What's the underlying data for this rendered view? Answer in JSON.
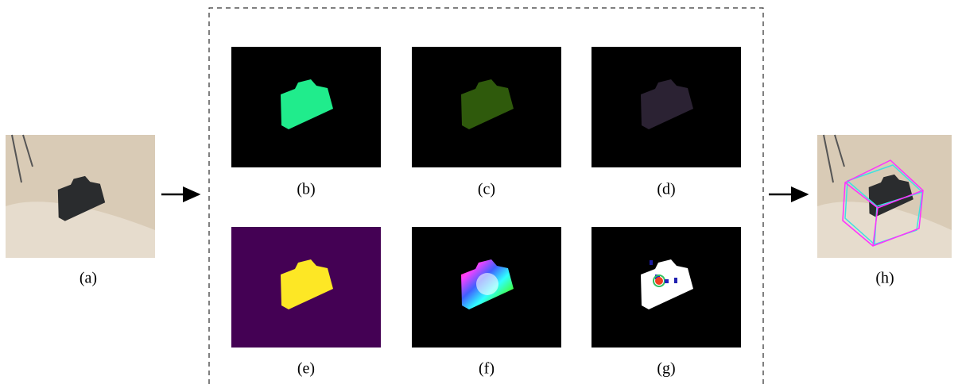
{
  "panels": {
    "a": "(a)",
    "b": "(b)",
    "c": "(c)",
    "d": "(d)",
    "e": "(e)",
    "f": "(f)",
    "g": "(g)",
    "h": "(h)"
  }
}
